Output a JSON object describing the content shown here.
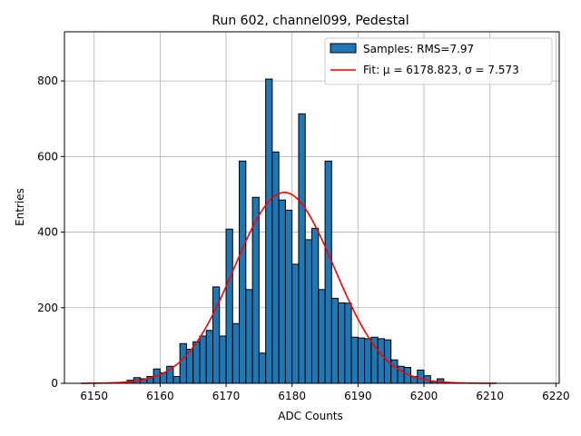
{
  "chart_data": {
    "type": "bar",
    "title": "Run 602, channel099, Pedestal",
    "xlabel": "ADC Counts",
    "ylabel": "Entries",
    "xlim": [
      6145.5,
      6220.5
    ],
    "ylim": [
      0,
      930
    ],
    "xticks": [
      6150,
      6160,
      6170,
      6180,
      6190,
      6200,
      6210,
      6220
    ],
    "yticks": [
      0,
      200,
      400,
      600,
      800
    ],
    "grid": true,
    "legend_position": "top-right",
    "bin_width": 1,
    "histogram": {
      "name": "Samples: RMS=7.97",
      "color": "#1f77b4",
      "edge_color": "#000000",
      "bin_starts": [
        6155,
        6156,
        6157,
        6158,
        6159,
        6160,
        6161,
        6162,
        6163,
        6164,
        6165,
        6166,
        6167,
        6168,
        6169,
        6170,
        6171,
        6172,
        6173,
        6174,
        6175,
        6176,
        6177,
        6178,
        6179,
        6180,
        6181,
        6182,
        6183,
        6184,
        6185,
        6186,
        6187,
        6188,
        6189,
        6190,
        6191,
        6192,
        6193,
        6194,
        6195,
        6196,
        6197,
        6198,
        6199,
        6200,
        6201,
        6202
      ],
      "counts": [
        8,
        15,
        12,
        18,
        38,
        28,
        45,
        18,
        105,
        90,
        110,
        125,
        140,
        255,
        125,
        408,
        158,
        588,
        248,
        492,
        80,
        805,
        612,
        485,
        458,
        315,
        713,
        380,
        410,
        248,
        588,
        225,
        213,
        212,
        122,
        120,
        118,
        122,
        118,
        115,
        62,
        45,
        42,
        18,
        35,
        20,
        5,
        12
      ]
    },
    "fit": {
      "name": "Fit: μ = 6178.823, σ = 7.573",
      "color": "#ff0000",
      "mu": 6178.823,
      "sigma": 7.573,
      "amplitude": 505,
      "x_range": [
        6148,
        6211
      ]
    }
  },
  "legend": {
    "samples_label": "Samples: RMS=7.97",
    "fit_label": "Fit: μ = 6178.823, σ = 7.573"
  }
}
